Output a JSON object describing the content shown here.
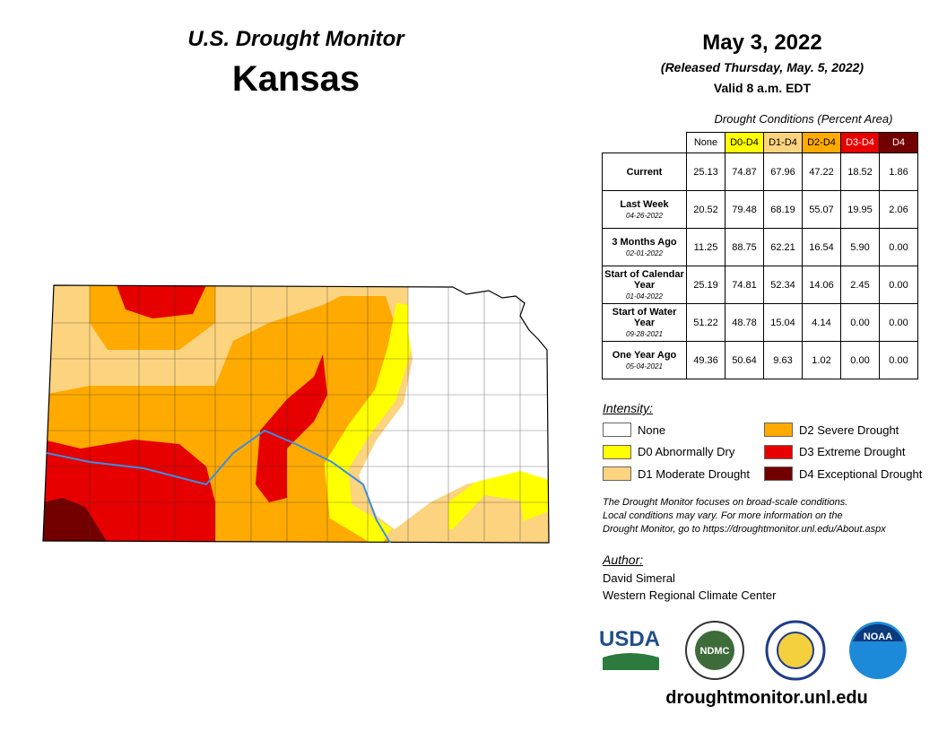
{
  "header": {
    "title": "U.S. Drought Monitor",
    "state": "Kansas"
  },
  "release": {
    "date": "May 3, 2022",
    "released": "(Released Thursday, May. 5, 2022)",
    "valid": "Valid 8 a.m. EDT"
  },
  "table": {
    "caption": "Drought Conditions (Percent Area)",
    "columns": [
      "None",
      "D0-D4",
      "D1-D4",
      "D2-D4",
      "D3-D4",
      "D4"
    ],
    "rows": [
      {
        "label": "Current",
        "values": [
          "25.13",
          "74.87",
          "67.96",
          "47.22",
          "18.52",
          "1.86"
        ]
      },
      {
        "label": "Last Week",
        "date": "04-26-2022",
        "values": [
          "20.52",
          "79.48",
          "68.19",
          "55.07",
          "19.95",
          "2.06"
        ]
      },
      {
        "label": "3 Months Ago",
        "date": "02-01-2022",
        "values": [
          "11.25",
          "88.75",
          "62.21",
          "16.54",
          "5.90",
          "0.00"
        ]
      },
      {
        "label": "Start of Calendar Year",
        "date": "01-04-2022",
        "values": [
          "25.19",
          "74.81",
          "52.34",
          "14.06",
          "2.45",
          "0.00"
        ]
      },
      {
        "label": "Start of Water Year",
        "date": "09-28-2021",
        "values": [
          "51.22",
          "48.78",
          "15.04",
          "4.14",
          "0.00",
          "0.00"
        ]
      },
      {
        "label": "One Year Ago",
        "date": "05-04-2021",
        "values": [
          "49.36",
          "50.64",
          "9.63",
          "1.02",
          "0.00",
          "0.00"
        ]
      }
    ]
  },
  "legend": {
    "title": "Intensity:",
    "items": [
      "None",
      "D0 Abnormally Dry",
      "D1 Moderate Drought",
      "D2 Severe Drought",
      "D3 Extreme Drought",
      "D4 Exceptional Drought"
    ]
  },
  "note": [
    "The Drought Monitor focuses on broad-scale conditions.",
    "Local conditions may vary. For more information on the",
    "Drought Monitor, go to https://droughtmonitor.unl.edu/About.aspx"
  ],
  "author": {
    "title": "Author:",
    "names": [
      "David Simeral",
      "Western Regional Climate Center"
    ]
  },
  "logos": [
    "USDA",
    "NDMC",
    "NOAA"
  ],
  "url": "droughtmonitor.unl.edu"
}
